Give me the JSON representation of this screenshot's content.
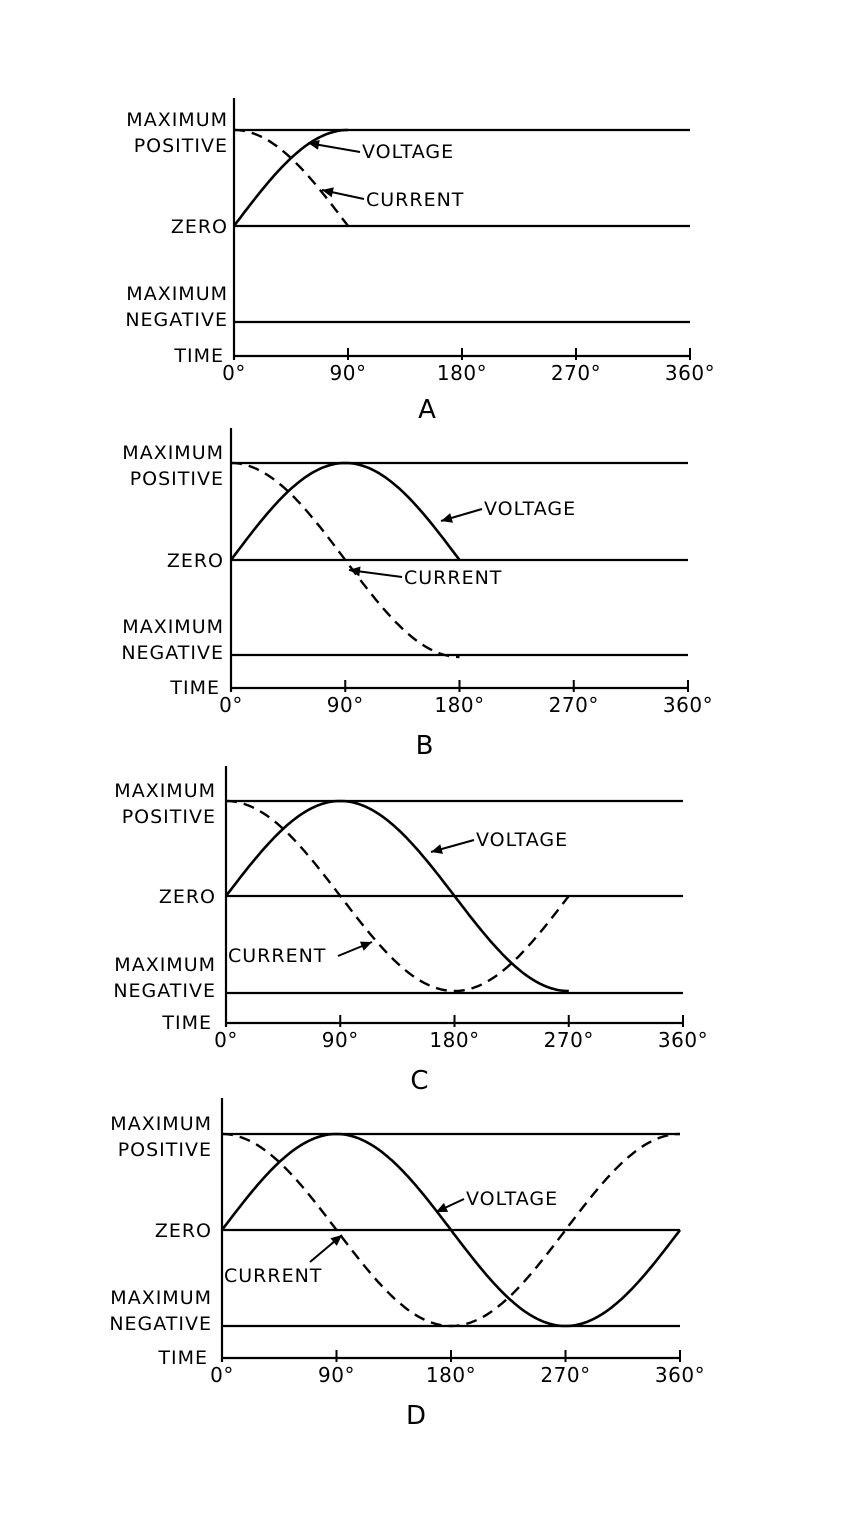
{
  "chart_data": [
    {
      "type": "line",
      "panel_label": "A",
      "y_labels": {
        "max_positive": [
          "MAXIMUM",
          "POSITIVE"
        ],
        "zero": "ZERO",
        "max_negative": [
          "MAXIMUM",
          "NEGATIVE"
        ],
        "time": "TIME"
      },
      "x_ticks": [
        "0°",
        "90°",
        "180°",
        "270°",
        "360°"
      ],
      "xlim": [
        0,
        360
      ],
      "ylim": [
        -1,
        1
      ],
      "series": [
        {
          "name": "VOLTAGE",
          "function": "sin",
          "x_range": [
            0,
            90
          ]
        },
        {
          "name": "CURRENT",
          "function": "cos",
          "x_range": [
            0,
            90
          ]
        }
      ]
    },
    {
      "type": "line",
      "panel_label": "B",
      "y_labels": {
        "max_positive": [
          "MAXIMUM",
          "POSITIVE"
        ],
        "zero": "ZERO",
        "max_negative": [
          "MAXIMUM",
          "NEGATIVE"
        ],
        "time": "TIME"
      },
      "x_ticks": [
        "0°",
        "90°",
        "180°",
        "270°",
        "360°"
      ],
      "xlim": [
        0,
        360
      ],
      "ylim": [
        -1,
        1
      ],
      "series": [
        {
          "name": "VOLTAGE",
          "function": "sin",
          "x_range": [
            0,
            180
          ]
        },
        {
          "name": "CURRENT",
          "function": "cos",
          "x_range": [
            0,
            180
          ]
        }
      ]
    },
    {
      "type": "line",
      "panel_label": "C",
      "y_labels": {
        "max_positive": [
          "MAXIMUM",
          "POSITIVE"
        ],
        "zero": "ZERO",
        "max_negative": [
          "MAXIMUM",
          "NEGATIVE"
        ],
        "time": "TIME"
      },
      "x_ticks": [
        "0°",
        "90°",
        "180°",
        "270°",
        "360°"
      ],
      "xlim": [
        0,
        360
      ],
      "ylim": [
        -1,
        1
      ],
      "series": [
        {
          "name": "VOLTAGE",
          "function": "sin",
          "x_range": [
            0,
            270
          ]
        },
        {
          "name": "CURRENT",
          "function": "cos",
          "x_range": [
            0,
            270
          ]
        }
      ]
    },
    {
      "type": "line",
      "panel_label": "D",
      "y_labels": {
        "max_positive": [
          "MAXIMUM",
          "POSITIVE"
        ],
        "zero": "ZERO",
        "max_negative": [
          "MAXIMUM",
          "NEGATIVE"
        ],
        "time": "TIME"
      },
      "x_ticks": [
        "0°",
        "90°",
        "180°",
        "270°",
        "360°"
      ],
      "xlim": [
        0,
        360
      ],
      "ylim": [
        -1,
        1
      ],
      "series": [
        {
          "name": "VOLTAGE",
          "function": "sin",
          "x_range": [
            0,
            360
          ]
        },
        {
          "name": "CURRENT",
          "function": "cos",
          "x_range": [
            0,
            360
          ]
        }
      ]
    }
  ]
}
